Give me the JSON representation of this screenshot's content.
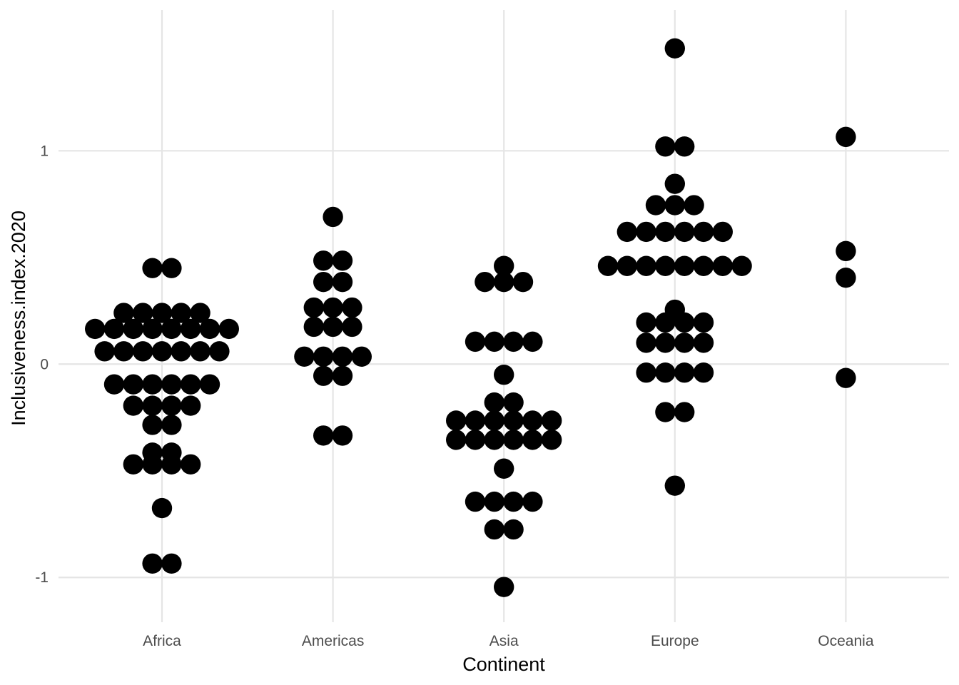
{
  "chart_data": {
    "type": "scatter",
    "subtype": "dotplot",
    "xlabel": "Continent",
    "ylabel": "Inclusiveness.index.2020",
    "categories": [
      "Africa",
      "Americas",
      "Asia",
      "Europe",
      "Oceania"
    ],
    "y_ticks": [
      {
        "value": -1,
        "label": "-1"
      },
      {
        "value": 0,
        "label": "0"
      },
      {
        "value": 1,
        "label": "1"
      }
    ],
    "ylim": [
      -1.21,
      1.66
    ],
    "grid": true,
    "legend": "none",
    "point_color": "#000000",
    "series": [
      {
        "category": "Africa",
        "values": [
          -0.935,
          -0.935,
          -0.675,
          -0.47,
          -0.47,
          -0.47,
          -0.47,
          -0.415,
          -0.415,
          -0.285,
          -0.285,
          -0.195,
          -0.195,
          -0.195,
          -0.195,
          -0.095,
          -0.095,
          -0.095,
          -0.095,
          -0.095,
          -0.095,
          0.06,
          0.06,
          0.06,
          0.06,
          0.06,
          0.06,
          0.06,
          0.165,
          0.165,
          0.165,
          0.165,
          0.165,
          0.165,
          0.165,
          0.165,
          0.24,
          0.24,
          0.24,
          0.24,
          0.24,
          0.45,
          0.45
        ]
      },
      {
        "category": "Americas",
        "values": [
          -0.335,
          -0.335,
          -0.055,
          -0.055,
          0.035,
          0.035,
          0.035,
          0.035,
          0.175,
          0.175,
          0.175,
          0.265,
          0.265,
          0.265,
          0.385,
          0.385,
          0.485,
          0.485,
          0.69
        ]
      },
      {
        "category": "Asia",
        "values": [
          -1.045,
          -0.775,
          -0.775,
          -0.645,
          -0.645,
          -0.645,
          -0.645,
          -0.49,
          -0.355,
          -0.355,
          -0.355,
          -0.355,
          -0.355,
          -0.355,
          -0.265,
          -0.265,
          -0.265,
          -0.265,
          -0.265,
          -0.265,
          -0.18,
          -0.18,
          -0.05,
          0.105,
          0.105,
          0.105,
          0.105,
          0.385,
          0.385,
          0.385,
          0.46
        ]
      },
      {
        "category": "Europe",
        "values": [
          -0.57,
          -0.225,
          -0.225,
          -0.04,
          -0.04,
          -0.04,
          -0.04,
          0.1,
          0.1,
          0.1,
          0.1,
          0.195,
          0.195,
          0.195,
          0.195,
          0.255,
          0.46,
          0.46,
          0.46,
          0.46,
          0.46,
          0.46,
          0.46,
          0.46,
          0.62,
          0.62,
          0.62,
          0.62,
          0.62,
          0.62,
          0.745,
          0.745,
          0.745,
          0.845,
          1.02,
          1.02,
          1.48
        ]
      },
      {
        "category": "Oceania",
        "values": [
          -0.065,
          0.405,
          0.53,
          1.065
        ]
      }
    ]
  }
}
